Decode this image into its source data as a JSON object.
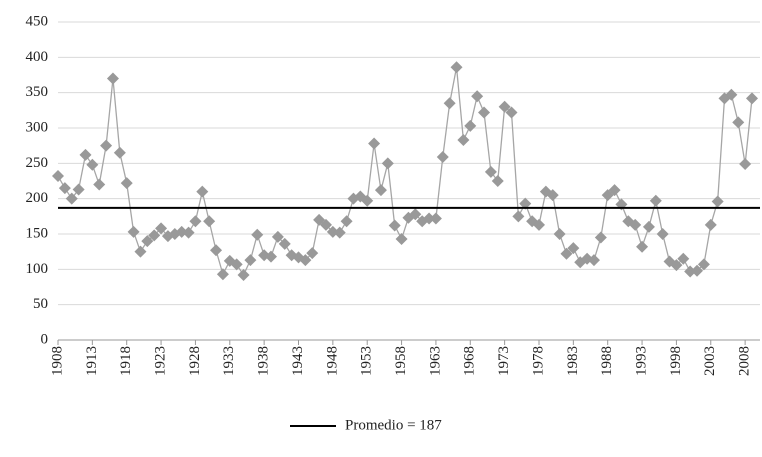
{
  "chart_data": {
    "type": "line",
    "x": [
      1908,
      1909,
      1910,
      1911,
      1912,
      1913,
      1914,
      1915,
      1916,
      1917,
      1918,
      1919,
      1920,
      1921,
      1922,
      1923,
      1924,
      1925,
      1926,
      1927,
      1928,
      1929,
      1930,
      1931,
      1932,
      1933,
      1934,
      1935,
      1936,
      1937,
      1938,
      1939,
      1940,
      1941,
      1942,
      1943,
      1944,
      1945,
      1946,
      1947,
      1948,
      1949,
      1950,
      1951,
      1952,
      1953,
      1954,
      1955,
      1956,
      1957,
      1958,
      1959,
      1960,
      1961,
      1962,
      1963,
      1964,
      1965,
      1966,
      1967,
      1968,
      1969,
      1970,
      1971,
      1972,
      1973,
      1974,
      1975,
      1976,
      1977,
      1978,
      1979,
      1980,
      1981,
      1982,
      1983,
      1984,
      1985,
      1986,
      1987,
      1988,
      1989,
      1990,
      1991,
      1992,
      1993,
      1994,
      1995,
      1996,
      1997,
      1998,
      1999,
      2000,
      2001,
      2002,
      2003,
      2004,
      2005,
      2006,
      2007,
      2008,
      2009
    ],
    "series": [
      {
        "color": "#a6a6a6",
        "marker_color": "#999999",
        "values": [
          232,
          215,
          200,
          213,
          262,
          248,
          220,
          275,
          370,
          265,
          222,
          153,
          125,
          140,
          148,
          158,
          147,
          150,
          153,
          152,
          168,
          210,
          168,
          127,
          93,
          112,
          107,
          92,
          113,
          149,
          120,
          118,
          146,
          136,
          120,
          117,
          113,
          123,
          170,
          163,
          153,
          152,
          168,
          200,
          203,
          197,
          278,
          212,
          250,
          162,
          143,
          173,
          178,
          168,
          172,
          172,
          259,
          335,
          386,
          283,
          303,
          345,
          322,
          238,
          225,
          330,
          322,
          175,
          193,
          168,
          163,
          210,
          205,
          150,
          122,
          130,
          110,
          115,
          113,
          145,
          205,
          212,
          192,
          168,
          163,
          132,
          160,
          197,
          150,
          111,
          106,
          115,
          97,
          98,
          107,
          163,
          196,
          342,
          347,
          308,
          249,
          342
        ]
      }
    ],
    "reference_line": {
      "value": 187,
      "label": "Promedio = 187",
      "color": "#000000"
    },
    "xlim": [
      1908,
      2009
    ],
    "xticks": [
      1908,
      1913,
      1918,
      1923,
      1928,
      1933,
      1938,
      1943,
      1948,
      1953,
      1958,
      1963,
      1968,
      1973,
      1978,
      1983,
      1988,
      1993,
      1998,
      2003,
      2008
    ],
    "ylim": [
      0,
      450
    ],
    "yticks": [
      0,
      50,
      100,
      150,
      200,
      250,
      300,
      350,
      400,
      450
    ],
    "grid": true,
    "legend": "bottom"
  }
}
